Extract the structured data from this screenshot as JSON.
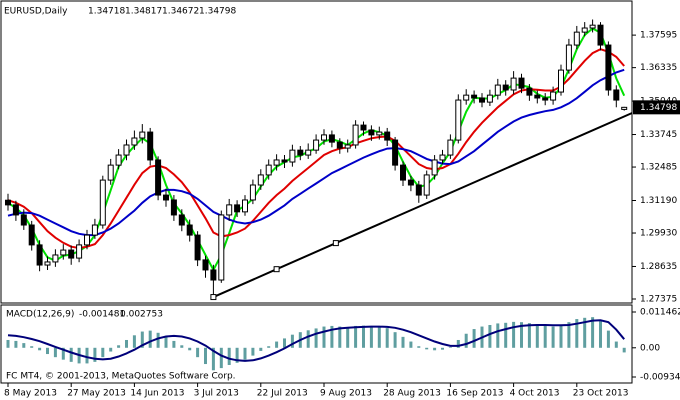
{
  "chart_data": [
    {
      "type": "candlestick",
      "title": "EURUSD,Daily",
      "up_color": "#ffffff",
      "down_color": "#000000",
      "outline_color": "#000000",
      "categories": [
        "8 May 2013",
        null,
        null,
        null,
        null,
        null,
        null,
        null,
        "27 May 2013",
        null,
        null,
        null,
        null,
        null,
        null,
        null,
        "14 Jun 2013",
        null,
        null,
        null,
        null,
        null,
        null,
        null,
        "3 Jul 2013",
        null,
        null,
        null,
        null,
        null,
        null,
        null,
        "22 Jul 2013",
        null,
        null,
        null,
        null,
        null,
        null,
        null,
        "9 Aug 2013",
        null,
        null,
        null,
        null,
        null,
        null,
        null,
        "28 Aug 2013",
        null,
        null,
        null,
        null,
        null,
        null,
        null,
        "16 Sep 2013",
        null,
        null,
        null,
        null,
        null,
        null,
        null,
        "4 Oct 2013",
        null,
        null,
        null,
        null,
        null,
        null,
        null,
        "23 Oct 2013",
        null,
        null,
        null,
        null,
        null,
        null
      ],
      "ohlc": [
        [
          1.312,
          1.3145,
          1.308,
          1.3102
        ],
        [
          1.3102,
          1.3118,
          1.304,
          1.3063
        ],
        [
          1.3063,
          1.3085,
          1.3005,
          1.3024
        ],
        [
          1.3024,
          1.304,
          1.2925,
          1.2947
        ],
        [
          1.2947,
          1.2965,
          1.2845,
          1.2869
        ],
        [
          1.2869,
          1.2902,
          1.285,
          1.2881
        ],
        [
          1.2881,
          1.293,
          1.2862,
          1.2908
        ],
        [
          1.2908,
          1.295,
          1.289,
          1.2927
        ],
        [
          1.2927,
          1.2945,
          1.287,
          1.2896
        ],
        [
          1.2896,
          1.2968,
          1.288,
          1.2947
        ],
        [
          1.2947,
          1.3005,
          1.293,
          1.2985
        ],
        [
          1.2985,
          1.3048,
          1.297,
          1.3024
        ],
        [
          1.3024,
          1.3215,
          1.301,
          1.3198
        ],
        [
          1.3198,
          1.328,
          1.318,
          1.3256
        ],
        [
          1.3256,
          1.3318,
          1.324,
          1.3295
        ],
        [
          1.3295,
          1.3355,
          1.3275,
          1.3334
        ],
        [
          1.3334,
          1.339,
          1.3315,
          1.3361
        ],
        [
          1.3361,
          1.3415,
          1.334,
          1.3384
        ],
        [
          1.3384,
          1.34,
          1.3255,
          1.3276
        ],
        [
          1.3276,
          1.329,
          1.312,
          1.314
        ],
        [
          1.314,
          1.3165,
          1.3095,
          1.3121
        ],
        [
          1.3121,
          1.314,
          1.304,
          1.3063
        ],
        [
          1.3063,
          1.3085,
          1.3,
          1.3024
        ],
        [
          1.3024,
          1.3045,
          1.296,
          1.2985
        ],
        [
          1.2985,
          1.3,
          1.2865,
          1.2889
        ],
        [
          1.2889,
          1.2905,
          1.282,
          1.285
        ],
        [
          1.285,
          1.287,
          1.2745,
          1.2811
        ],
        [
          1.2811,
          1.308,
          1.28,
          1.3063
        ],
        [
          1.3063,
          1.3125,
          1.304,
          1.3102
        ],
        [
          1.3102,
          1.312,
          1.3055,
          1.3075
        ],
        [
          1.3075,
          1.314,
          1.306,
          1.3121
        ],
        [
          1.3121,
          1.32,
          1.3105,
          1.3179
        ],
        [
          1.3179,
          1.324,
          1.316,
          1.3218
        ],
        [
          1.3218,
          1.3278,
          1.32,
          1.3256
        ],
        [
          1.3256,
          1.3298,
          1.3235,
          1.3276
        ],
        [
          1.3276,
          1.3295,
          1.3245,
          1.3268
        ],
        [
          1.3268,
          1.3335,
          1.325,
          1.3314
        ],
        [
          1.3314,
          1.333,
          1.3275,
          1.3295
        ],
        [
          1.3295,
          1.334,
          1.328,
          1.3314
        ],
        [
          1.3314,
          1.3375,
          1.33,
          1.3353
        ],
        [
          1.3353,
          1.3395,
          1.3335,
          1.3373
        ],
        [
          1.3373,
          1.339,
          1.3325,
          1.3345
        ],
        [
          1.3345,
          1.336,
          1.33,
          1.3322
        ],
        [
          1.3322,
          1.3355,
          1.3305,
          1.3334
        ],
        [
          1.3334,
          1.343,
          1.332,
          1.3411
        ],
        [
          1.3411,
          1.3425,
          1.337,
          1.3392
        ],
        [
          1.3392,
          1.341,
          1.335,
          1.3373
        ],
        [
          1.3373,
          1.3405,
          1.3355,
          1.3384
        ],
        [
          1.3384,
          1.34,
          1.333,
          1.3353
        ],
        [
          1.3353,
          1.3365,
          1.3235,
          1.3256
        ],
        [
          1.3256,
          1.327,
          1.3175,
          1.3198
        ],
        [
          1.3198,
          1.3215,
          1.3155,
          1.3179
        ],
        [
          1.3179,
          1.3195,
          1.311,
          1.314
        ],
        [
          1.314,
          1.3235,
          1.3125,
          1.3218
        ],
        [
          1.3218,
          1.3295,
          1.32,
          1.3276
        ],
        [
          1.3276,
          1.3315,
          1.326,
          1.3295
        ],
        [
          1.3295,
          1.3375,
          1.328,
          1.3353
        ],
        [
          1.3353,
          1.353,
          1.334,
          1.3508
        ],
        [
          1.3508,
          1.355,
          1.349,
          1.3527
        ],
        [
          1.3527,
          1.3545,
          1.3495,
          1.3516
        ],
        [
          1.3516,
          1.3535,
          1.348,
          1.35
        ],
        [
          1.35,
          1.3548,
          1.3485,
          1.3527
        ],
        [
          1.3527,
          1.359,
          1.351,
          1.3566
        ],
        [
          1.3566,
          1.3585,
          1.3525,
          1.3547
        ],
        [
          1.3547,
          1.362,
          1.353,
          1.3593
        ],
        [
          1.3593,
          1.361,
          1.3535,
          1.3554
        ],
        [
          1.3554,
          1.357,
          1.3505,
          1.3527
        ],
        [
          1.3527,
          1.3545,
          1.3495,
          1.3516
        ],
        [
          1.3516,
          1.3535,
          1.3488,
          1.3508
        ],
        [
          1.3508,
          1.356,
          1.349,
          1.3539
        ],
        [
          1.3539,
          1.3645,
          1.3525,
          1.3624
        ],
        [
          1.3624,
          1.3745,
          1.361,
          1.3721
        ],
        [
          1.3721,
          1.3795,
          1.3705,
          1.3771
        ],
        [
          1.3771,
          1.381,
          1.3755,
          1.3787
        ],
        [
          1.3787,
          1.382,
          1.377,
          1.3798
        ],
        [
          1.3798,
          1.381,
          1.37,
          1.3721
        ],
        [
          1.3721,
          1.3735,
          1.3525,
          1.3547
        ],
        [
          1.3547,
          1.3565,
          1.348,
          1.3508
        ],
        [
          1.34718,
          1.34817,
          1.34672,
          1.34798
        ]
      ],
      "series": [
        {
          "color": "#00e000",
          "values": [
            1.311,
            1.309,
            1.3063,
            1.3011,
            1.2947,
            1.2899,
            1.2886,
            1.2905,
            1.291,
            1.2923,
            1.2943,
            1.2985,
            1.3069,
            1.3159,
            1.325,
            1.3295,
            1.333,
            1.336,
            1.334,
            1.3267,
            1.3179,
            1.3108,
            1.3069,
            1.3024,
            1.2966,
            1.2908,
            1.285,
            1.2908,
            1.2992,
            1.308,
            1.3099,
            1.3125,
            1.3173,
            1.3218,
            1.325,
            1.3267,
            1.3286,
            1.3292,
            1.3308,
            1.3321,
            1.3347,
            1.3357,
            1.3347,
            1.3334,
            1.3356,
            1.3379,
            1.3392,
            1.3383,
            1.337,
            1.3331,
            1.3269,
            1.3211,
            1.3172,
            1.3179,
            1.3211,
            1.3263,
            1.3308,
            1.3385,
            1.3463,
            1.3517,
            1.3514,
            1.3514,
            1.3531,
            1.3547,
            1.3569,
            1.3565,
            1.3558,
            1.3532,
            1.3517,
            1.3521,
            1.3557,
            1.3628,
            1.3705,
            1.376,
            1.3785,
            1.3769,
            1.3689,
            1.3592,
            1.3525
          ]
        },
        {
          "color": "#e00000",
          "values": [
            1.312,
            1.311,
            1.3095,
            1.307,
            1.3035,
            1.3,
            1.2975,
            1.2955,
            1.294,
            1.2935,
            1.294,
            1.295,
            1.2985,
            1.303,
            1.308,
            1.313,
            1.318,
            1.3225,
            1.325,
            1.3255,
            1.3245,
            1.322,
            1.319,
            1.315,
            1.31,
            1.305,
            1.2995,
            1.298,
            1.2985,
            1.2995,
            1.301,
            1.304,
            1.3075,
            1.311,
            1.314,
            1.3165,
            1.3195,
            1.322,
            1.3245,
            1.327,
            1.3295,
            1.331,
            1.332,
            1.3325,
            1.334,
            1.335,
            1.336,
            1.3365,
            1.3367,
            1.335,
            1.332,
            1.329,
            1.326,
            1.3245,
            1.324,
            1.3245,
            1.326,
            1.33,
            1.3345,
            1.3385,
            1.342,
            1.345,
            1.348,
            1.3505,
            1.353,
            1.3545,
            1.355,
            1.3548,
            1.3545,
            1.3545,
            1.356,
            1.359,
            1.3625,
            1.366,
            1.369,
            1.3705,
            1.3695,
            1.3675,
            1.364
          ]
        },
        {
          "color": "#0000c8",
          "values": [
            1.306,
            1.3068,
            1.3072,
            1.307,
            1.306,
            1.3045,
            1.303,
            1.3015,
            1.3,
            1.299,
            1.2985,
            1.2985,
            1.2995,
            1.301,
            1.303,
            1.3055,
            1.308,
            1.311,
            1.3135,
            1.315,
            1.316,
            1.316,
            1.3155,
            1.3145,
            1.3125,
            1.31,
            1.3075,
            1.306,
            1.3045,
            1.3035,
            1.303,
            1.3035,
            1.3045,
            1.306,
            1.308,
            1.31,
            1.3125,
            1.3145,
            1.3165,
            1.3185,
            1.3205,
            1.3225,
            1.324,
            1.3255,
            1.327,
            1.3285,
            1.3298,
            1.331,
            1.332,
            1.3322,
            1.3318,
            1.331,
            1.3295,
            1.328,
            1.327,
            1.3262,
            1.326,
            1.327,
            1.329,
            1.331,
            1.3335,
            1.336,
            1.3385,
            1.3405,
            1.3425,
            1.344,
            1.345,
            1.3458,
            1.3465,
            1.347,
            1.348,
            1.3495,
            1.3515,
            1.354,
            1.3565,
            1.3585,
            1.36,
            1.3615,
            1.3625
          ]
        }
      ],
      "trendline": {
        "color": "#000000",
        "x": [
          26,
          34,
          41.5,
          79
        ],
        "values": [
          1.2745,
          1.2853,
          1.2954,
          1.3458
        ]
      },
      "ylim": [
        1.2722,
        1.388
      ],
      "yticks": [
        1.37595,
        1.36335,
        {
          "value": 1.3504,
          "label": "1.35040"
        },
        1.33745,
        1.32485,
        {
          "value": 1.3119,
          "label": "1.31190"
        },
        {
          "value": 1.2993,
          "label": "1.29930"
        },
        1.28635,
        1.27375
      ]
    },
    {
      "type": "macd",
      "title": "MACD(12,26,9)",
      "footer": "FC MT4, © 2001-2013, MetaQuotes Software Corp.",
      "histogram": {
        "color": "#5f9ea0",
        "values": [
          0.0025,
          0.0022,
          0.0015,
          0.0005,
          -0.0008,
          -0.002,
          -0.003,
          -0.0038,
          -0.0045,
          -0.005,
          -0.005,
          -0.0045,
          -0.003,
          -0.0012,
          0.0008,
          0.0025,
          0.004,
          0.0052,
          0.0055,
          0.0048,
          0.0036,
          0.0022,
          0.0008,
          -0.0008,
          -0.003,
          -0.0052,
          -0.0072,
          -0.0065,
          -0.0055,
          -0.0048,
          -0.0038,
          -0.0025,
          -0.001,
          0.0005,
          0.002,
          0.003,
          0.0042,
          0.005,
          0.0056,
          0.0062,
          0.0068,
          0.007,
          0.0068,
          0.0066,
          0.007,
          0.0071,
          0.007,
          0.0068,
          0.0063,
          0.005,
          0.0035,
          0.002,
          0.0005,
          -0.0005,
          -0.0008,
          -0.0006,
          0.0002,
          0.0025,
          0.0045,
          0.006,
          0.0068,
          0.0073,
          0.0078,
          0.008,
          0.0083,
          0.0082,
          0.0079,
          0.0075,
          0.007,
          0.0068,
          0.0072,
          0.0082,
          0.0092,
          0.0096,
          0.0098,
          0.0085,
          0.0055,
          0.002,
          -0.001481
        ]
      },
      "signal": {
        "color": "#00007a",
        "values": [
          0.004,
          0.0038,
          0.0034,
          0.0028,
          0.0021,
          0.0012,
          0.0003,
          -0.0006,
          -0.0015,
          -0.0023,
          -0.003,
          -0.0035,
          -0.0037,
          -0.0035,
          -0.0028,
          -0.0018,
          -0.0006,
          0.0008,
          0.002,
          0.003,
          0.0036,
          0.0038,
          0.0036,
          0.003,
          0.002,
          0.0007,
          -0.001,
          -0.0025,
          -0.0035,
          -0.004,
          -0.0042,
          -0.004,
          -0.0034,
          -0.0025,
          -0.0014,
          -0.0002,
          0.0012,
          0.0025,
          0.0036,
          0.0045,
          0.0052,
          0.0058,
          0.0062,
          0.0064,
          0.0066,
          0.0067,
          0.0068,
          0.0068,
          0.0067,
          0.0064,
          0.0058,
          0.005,
          0.004,
          0.003,
          0.002,
          0.0012,
          0.0006,
          0.0006,
          0.0012,
          0.0022,
          0.0033,
          0.0044,
          0.0053,
          0.006,
          0.0066,
          0.007,
          0.0072,
          0.0073,
          0.0073,
          0.0072,
          0.0072,
          0.0073,
          0.0077,
          0.0082,
          0.0087,
          0.0088,
          0.0082,
          0.0058,
          0.002753
        ]
      },
      "ylim": [
        -0.01127,
        0.0137
      ],
      "yticks": [
        0.011462,
        {
          "value": 0,
          "label": "0.00"
        },
        -0.009349
      ]
    }
  ]
}
